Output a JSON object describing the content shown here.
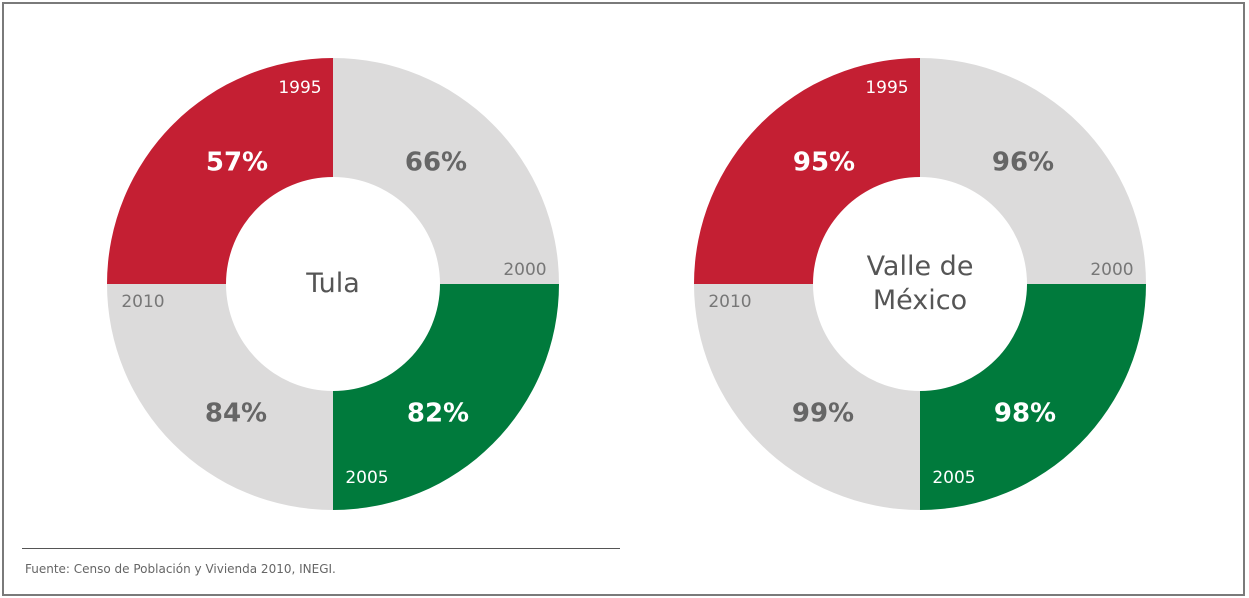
{
  "chart_data": [
    {
      "type": "quadrant-donut",
      "title": "Tula",
      "categories": [
        "1995",
        "2000",
        "2005",
        "2010"
      ],
      "values": [
        57,
        66,
        82,
        84
      ],
      "value_labels": [
        "57%",
        "66%",
        "82%",
        "84%"
      ],
      "colors": [
        "#c41f33",
        "#dcdbdb",
        "#007a3c",
        "#dcdbdb"
      ]
    },
    {
      "type": "quadrant-donut",
      "title": "Valle de México",
      "categories": [
        "1995",
        "2000",
        "2005",
        "2010"
      ],
      "values": [
        95,
        96,
        98,
        99
      ],
      "value_labels": [
        "95%",
        "96%",
        "98%",
        "99%"
      ],
      "colors": [
        "#c41f33",
        "#dcdbdb",
        "#007a3c",
        "#dcdbdb"
      ]
    }
  ],
  "source": "Fuente: Censo de Población y Vivienda 2010, INEGI."
}
